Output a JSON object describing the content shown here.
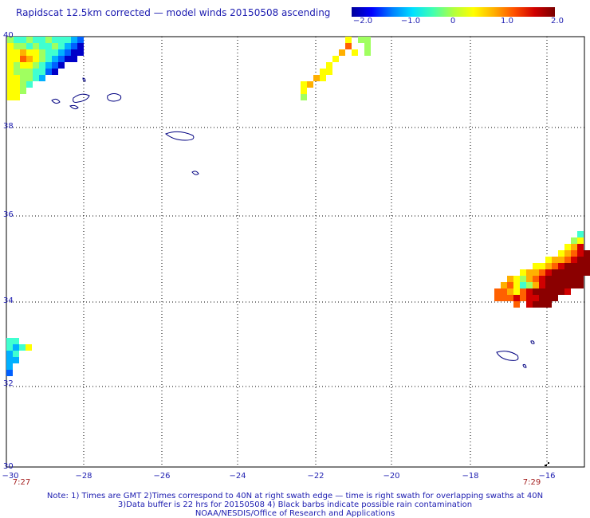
{
  "title": "Rapidscat 12.5km corrected — model winds 20150508 ascending",
  "colorbar": {
    "ticks": [
      "−2.0",
      "−1.0",
      "0",
      "1.0",
      "2.0"
    ],
    "colors": [
      "#00009b",
      "#0000ff",
      "#0080ff",
      "#00e0ff",
      "#40ffb0",
      "#b0ff40",
      "#ffff00",
      "#ffb000",
      "#ff5000",
      "#d00000",
      "#7a0000"
    ]
  },
  "lat_labels": [
    "40",
    "38",
    "36",
    "34",
    "32",
    "30"
  ],
  "lon_labels": [
    "−30",
    "−28",
    "−26",
    "−24",
    "−22",
    "−20",
    "−18",
    "−16"
  ],
  "times": [
    "7:27",
    "7:29"
  ],
  "notes": [
    "Note: 1) Times are GMT 2)Times correspond to 40N at right swath edge — time is right swath for overlapping swaths at 40N",
    "3)Data buffer is 22 hrs for 20150508 4) Black barbs indicate possible rain contamination",
    "NOAA/NESDIS/Office of Research and Applications"
  ]
}
